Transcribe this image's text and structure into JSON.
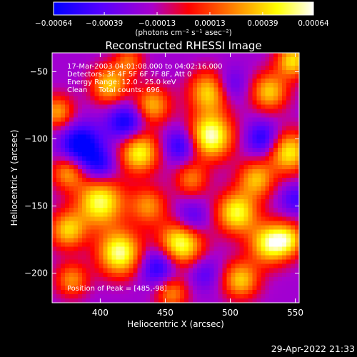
{
  "chart_data": {
    "type": "heatmap",
    "title": "Reconstructed RHESSI Image",
    "xlabel": "Heliocentric X (arcsec)",
    "ylabel": "Heliocentric Y (arcsec)",
    "xlim": [
      363,
      553
    ],
    "ylim": [
      -222,
      -36
    ],
    "x_ticks": [
      400,
      450,
      500,
      550
    ],
    "x_tick_labels": [
      "400",
      "450",
      "500",
      "550"
    ],
    "y_ticks": [
      -50,
      -100,
      -150,
      -200
    ],
    "y_tick_labels": [
      "−50",
      "−100",
      "−150",
      "−200"
    ],
    "colorbar": {
      "range": [
        -0.00064,
        0.00064
      ],
      "ticks": [
        -0.00064,
        -0.00039,
        -0.00013,
        0.00013,
        0.00039,
        0.00064
      ],
      "tick_labels": [
        "−0.00064",
        "−0.00039",
        "−0.00013",
        "0.00013",
        "0.00039",
        "0.00064"
      ],
      "unit_label": "(photons cm⁻² s⁻¹ asec⁻²)",
      "colors": [
        "#0000ff",
        "#5500ff",
        "#aa00cc",
        "#ff0000",
        "#ff8800",
        "#ffff00",
        "#ffffff"
      ]
    },
    "annotations": [
      "17-Mar-2003 04:01:08.000 to 04:02:16.000",
      "Detectors: 3F 4F 5F 6F 7F 8F, Att 0",
      "Energy Range: 12.0 - 25.0 keV",
      "Clean     Total counts: 696."
    ],
    "peak_label": "Position of Peak = [485,-98]",
    "blobs": [
      {
        "x": 485,
        "y": -98,
        "amp": 1.0,
        "r": 12
      },
      {
        "x": 484,
        "y": -65,
        "amp": 0.75,
        "r": 11
      },
      {
        "x": 430,
        "y": -110,
        "amp": 0.85,
        "r": 11
      },
      {
        "x": 440,
        "y": -75,
        "amp": 0.65,
        "r": 10
      },
      {
        "x": 407,
        "y": -60,
        "amp": 0.7,
        "r": 10
      },
      {
        "x": 367,
        "y": -80,
        "amp": 0.6,
        "r": 9
      },
      {
        "x": 375,
        "y": -125,
        "amp": 0.6,
        "r": 9
      },
      {
        "x": 400,
        "y": -147,
        "amp": 0.9,
        "r": 13
      },
      {
        "x": 375,
        "y": -168,
        "amp": 0.7,
        "r": 10
      },
      {
        "x": 437,
        "y": -150,
        "amp": 0.55,
        "r": 10
      },
      {
        "x": 415,
        "y": -185,
        "amp": 0.95,
        "r": 12
      },
      {
        "x": 378,
        "y": -205,
        "amp": 0.55,
        "r": 9
      },
      {
        "x": 462,
        "y": -178,
        "amp": 0.95,
        "r": 12
      },
      {
        "x": 470,
        "y": -130,
        "amp": 0.5,
        "r": 9
      },
      {
        "x": 505,
        "y": -155,
        "amp": 0.85,
        "r": 11
      },
      {
        "x": 530,
        "y": -178,
        "amp": 0.85,
        "r": 11
      },
      {
        "x": 508,
        "y": -205,
        "amp": 0.7,
        "r": 10
      },
      {
        "x": 520,
        "y": -130,
        "amp": 0.65,
        "r": 10
      },
      {
        "x": 545,
        "y": -110,
        "amp": 0.8,
        "r": 11
      },
      {
        "x": 530,
        "y": -65,
        "amp": 0.7,
        "r": 10
      },
      {
        "x": 548,
        "y": -42,
        "amp": 0.75,
        "r": 9
      },
      {
        "x": 545,
        "y": -175,
        "amp": 0.6,
        "r": 9
      },
      {
        "x": 455,
        "y": -215,
        "amp": 0.55,
        "r": 9
      },
      {
        "x": 422,
        "y": -42,
        "amp": 0.45,
        "r": 8
      },
      {
        "x": 385,
        "y": -105,
        "amp": -0.7,
        "r": 11
      },
      {
        "x": 420,
        "y": -88,
        "amp": -0.6,
        "r": 10
      },
      {
        "x": 445,
        "y": -195,
        "amp": -0.55,
        "r": 10
      },
      {
        "x": 462,
        "y": -105,
        "amp": -0.5,
        "r": 9
      },
      {
        "x": 525,
        "y": -100,
        "amp": -0.5,
        "r": 9
      },
      {
        "x": 400,
        "y": -120,
        "amp": -0.45,
        "r": 9
      },
      {
        "x": 470,
        "y": -160,
        "amp": -0.4,
        "r": 9
      },
      {
        "x": 500,
        "y": -60,
        "amp": -0.35,
        "r": 9
      },
      {
        "x": 550,
        "y": -145,
        "amp": -0.35,
        "r": 8
      },
      {
        "x": 480,
        "y": -200,
        "amp": -0.3,
        "r": 9
      }
    ]
  },
  "footer": {
    "timestamp": "29-Apr-2022 21:33"
  }
}
